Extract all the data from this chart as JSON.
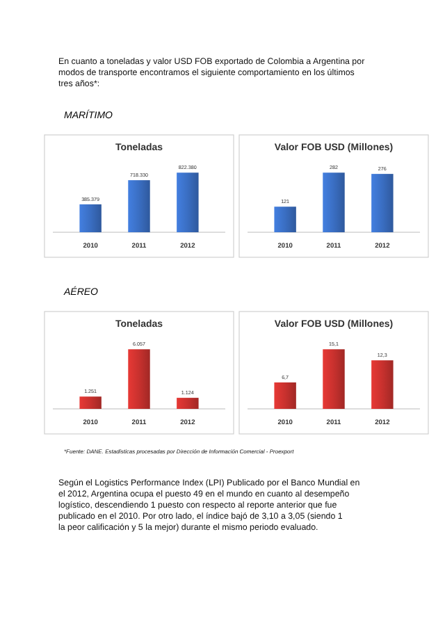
{
  "chart_data": [
    {
      "type": "bar",
      "title": "Toneladas",
      "categories": [
        "2010",
        "2011",
        "2012"
      ],
      "values": [
        385379,
        718330,
        822380
      ],
      "value_labels": [
        "385.379",
        "718.330",
        "822.380"
      ],
      "color": "#3a6ec2",
      "annotations": [
        "En cuanto a toneladas y valor USD FOB exportado de Colombia a Argentina por modos de transporte encontramos el siguiente comportamiento en los últimos tres años*:",
        "MARÍTIMO"
      ]
    },
    {
      "type": "bar",
      "title": "Valor FOB USD (Millones)",
      "categories": [
        "2010",
        "2011",
        "2012"
      ],
      "values": [
        121,
        282,
        276
      ],
      "value_labels": [
        "121",
        "282",
        "276"
      ],
      "color": "#3a6ec2"
    },
    {
      "type": "bar",
      "title": "Toneladas",
      "categories": [
        "2010",
        "2011",
        "2012"
      ],
      "values": [
        1251,
        6057,
        1124
      ],
      "value_labels": [
        "1.251",
        "6.057",
        "1.124"
      ],
      "color": "#c8312e",
      "annotations": [
        "AÉREO"
      ]
    },
    {
      "type": "bar",
      "title": "Valor FOB USD (Millones)",
      "categories": [
        "2010",
        "2011",
        "2012"
      ],
      "values": [
        6.7,
        15.1,
        12.3
      ],
      "value_labels": [
        "6,7",
        "15,1",
        "12,3"
      ],
      "color": "#c8312e",
      "annotations": [
        "*Fuente: DANE. Estadísticas procesadas por Dirección de Información Comercial - Proexport",
        "Según el Logistics Performance Index (LPI) Publicado por el Banco Mundial en el 2012, Argentina ocupa el puesto 49 en el mundo en cuanto al desempeño logístico, descendiendo 1 puesto con respecto al reporte anterior que fue publicado en el 2010. Por otro lado, el índice bajó de 3,10 a 3,05 (siendo 1 la peor calificación y 5 la mejor) durante el mismo periodo evaluado."
      ]
    }
  ]
}
